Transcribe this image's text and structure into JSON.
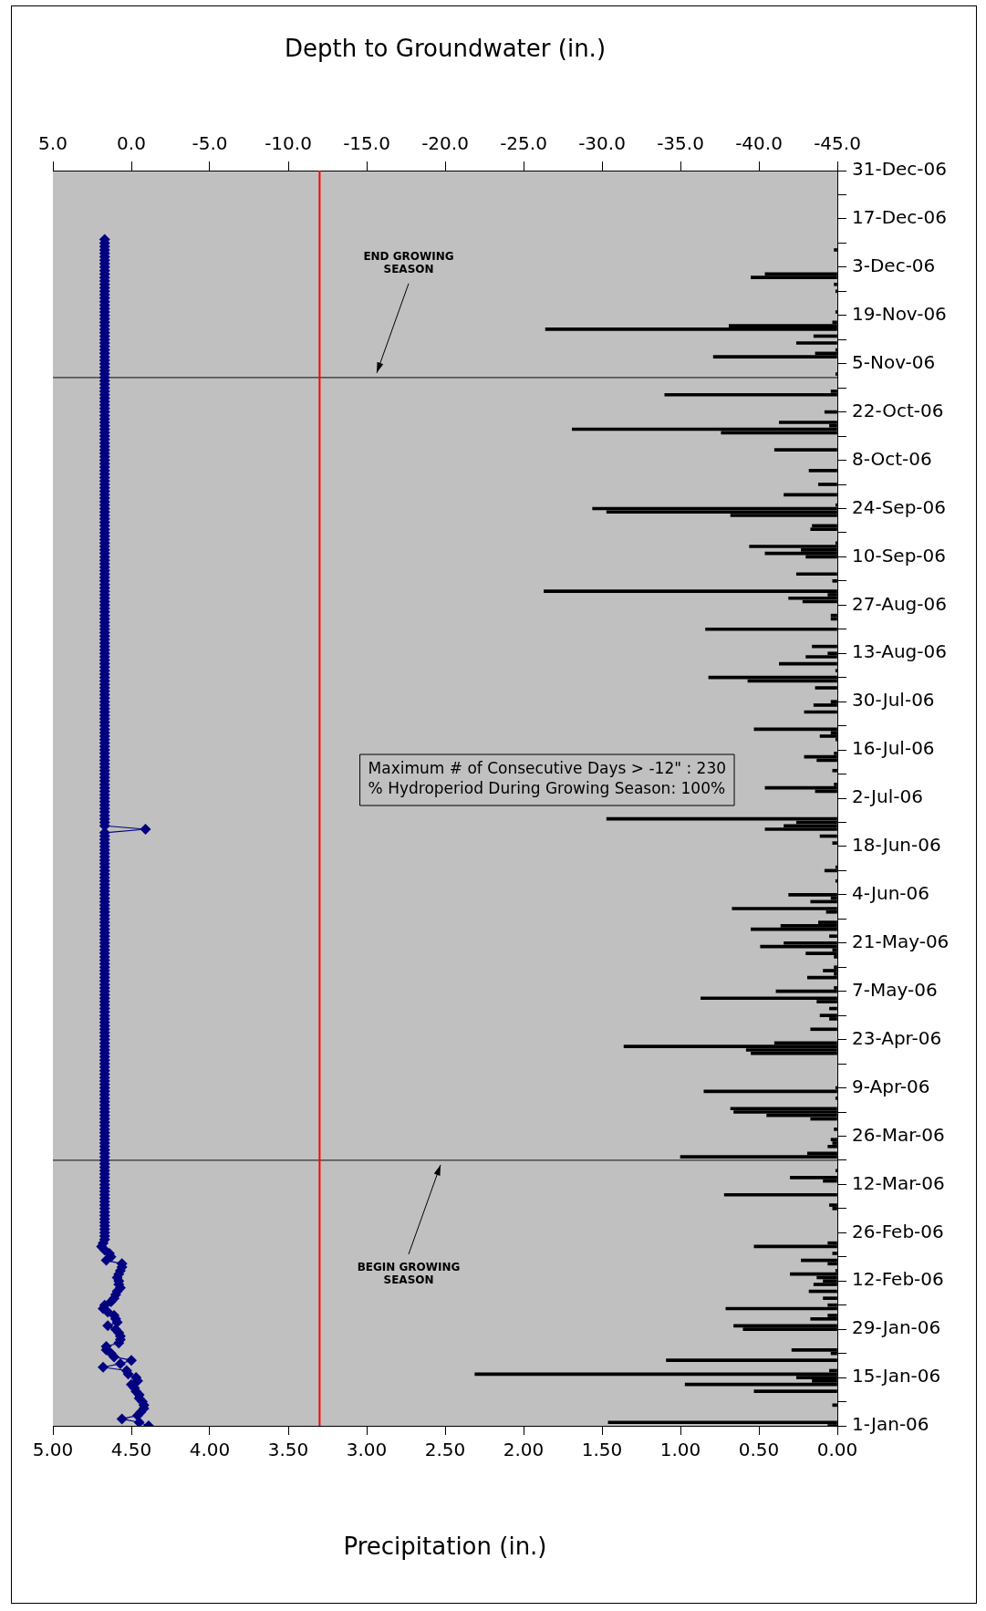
{
  "chart_data": {
    "type": "bar",
    "orientation": "horizontal",
    "xlabel": "Precipitation (in.)",
    "x2label": "Depth to Groundwater (in.)",
    "ylim": [
      "--01-01",
      "--12-31"
    ],
    "yticks": [
      {
        "value": "--01-01",
        "label": "1-Jan-06"
      },
      {
        "value": "--01-08",
        "label": null
      },
      {
        "value": "--01-15",
        "label": "15-Jan-06"
      },
      {
        "value": "--01-22",
        "label": null
      },
      {
        "value": "--01-29",
        "label": "29-Jan-06"
      },
      {
        "value": "--02-05",
        "label": null
      },
      {
        "value": "--02-12",
        "label": "12-Feb-06"
      },
      {
        "value": "--02-19",
        "label": null
      },
      {
        "value": "--02-26",
        "label": "26-Feb-06"
      },
      {
        "value": "--03-05",
        "label": null
      },
      {
        "value": "--03-12",
        "label": "12-Mar-06"
      },
      {
        "value": "--03-19",
        "label": null
      },
      {
        "value": "--03-26",
        "label": "26-Mar-06"
      },
      {
        "value": "--04-02",
        "label": null
      },
      {
        "value": "--04-09",
        "label": "9-Apr-06"
      },
      {
        "value": "--04-16",
        "label": null
      },
      {
        "value": "--04-23",
        "label": "23-Apr-06"
      },
      {
        "value": "--04-30",
        "label": null
      },
      {
        "value": "--05-07",
        "label": "7-May-06"
      },
      {
        "value": "--05-14",
        "label": null
      },
      {
        "value": "--05-21",
        "label": "21-May-06"
      },
      {
        "value": "--05-28",
        "label": null
      },
      {
        "value": "--06-04",
        "label": "4-Jun-06"
      },
      {
        "value": "--06-11",
        "label": null
      },
      {
        "value": "--06-18",
        "label": "18-Jun-06"
      },
      {
        "value": "--06-25",
        "label": null
      },
      {
        "value": "--07-02",
        "label": "2-Jul-06"
      },
      {
        "value": "--07-09",
        "label": null
      },
      {
        "value": "--07-16",
        "label": "16-Jul-06"
      },
      {
        "value": "--07-23",
        "label": null
      },
      {
        "value": "--07-30",
        "label": "30-Jul-06"
      },
      {
        "value": "--08-06",
        "label": null
      },
      {
        "value": "--08-13",
        "label": "13-Aug-06"
      },
      {
        "value": "--08-20",
        "label": null
      },
      {
        "value": "--08-27",
        "label": "27-Aug-06"
      },
      {
        "value": "--09-03",
        "label": null
      },
      {
        "value": "--09-10",
        "label": "10-Sep-06"
      },
      {
        "value": "--09-17",
        "label": null
      },
      {
        "value": "--09-24",
        "label": "24-Sep-06"
      },
      {
        "value": "--10-01",
        "label": null
      },
      {
        "value": "--10-08",
        "label": "8-Oct-06"
      },
      {
        "value": "--10-15",
        "label": null
      },
      {
        "value": "--10-22",
        "label": "22-Oct-06"
      },
      {
        "value": "--10-29",
        "label": null
      },
      {
        "value": "--11-05",
        "label": "5-Nov-06"
      },
      {
        "value": "--11-12",
        "label": null
      },
      {
        "value": "--11-19",
        "label": "19-Nov-06"
      },
      {
        "value": "--11-26",
        "label": null
      },
      {
        "value": "--12-03",
        "label": "3-Dec-06"
      },
      {
        "value": "--12-10",
        "label": null
      },
      {
        "value": "--12-17",
        "label": "17-Dec-06"
      },
      {
        "value": "--12-24",
        "label": null
      },
      {
        "value": "--12-31",
        "label": "31-Dec-06"
      }
    ],
    "xlim": [
      5,
      0
    ],
    "xticks": [
      {
        "value": 0,
        "label": "0.00"
      },
      {
        "value": 0.5,
        "label": "0.50"
      },
      {
        "value": 1,
        "label": "1.00"
      },
      {
        "value": 1.5,
        "label": "1.50"
      },
      {
        "value": 2,
        "label": "2.00"
      },
      {
        "value": 2.5,
        "label": "2.50"
      },
      {
        "value": 3,
        "label": "3.00"
      },
      {
        "value": 3.5,
        "label": "3.50"
      },
      {
        "value": 4,
        "label": "4.00"
      },
      {
        "value": 4.5,
        "label": "4.50"
      },
      {
        "value": 5,
        "label": "5.00"
      }
    ],
    "x2lim": [
      5,
      -45
    ],
    "x2ticks": [
      {
        "value": -45,
        "label": "-45.0"
      },
      {
        "value": -40,
        "label": "-40.0"
      },
      {
        "value": -35,
        "label": "-35.0"
      },
      {
        "value": -30,
        "label": "-30.0"
      },
      {
        "value": -25,
        "label": "-25.0"
      },
      {
        "value": -20,
        "label": "-20.0"
      },
      {
        "value": -15,
        "label": "-15.0"
      },
      {
        "value": -10,
        "label": "-10.0"
      },
      {
        "value": -5,
        "label": "-5.0"
      },
      {
        "value": 0,
        "label": "0.0"
      },
      {
        "value": 5,
        "label": "5.0"
      }
    ],
    "marker": "diamond",
    "ref_lines": [
      {
        "axis": "y",
        "value": "--03-19",
        "label": "BEGIN GROWING SEASON",
        "color": "#303030"
      },
      {
        "axis": "y",
        "value": "--11-01",
        "label": "END GROWING SEASON",
        "color": "#303030"
      },
      {
        "axis": "x2",
        "value": -12,
        "color": "#ff0000"
      }
    ],
    "annotations": [
      "Maximum # of Consecutive Days > -12\" : 230",
      "% Hydroperiod During Growing Season: 100%"
    ],
    "series": [
      {
        "color": "#000000",
        "x": [
          "--01-01",
          "--01-02",
          "--01-07",
          "--01-11",
          "--01-13",
          "--01-14",
          "--01-15",
          "--01-16",
          "--01-17",
          "--01-20",
          "--01-22",
          "--01-23",
          "--01-29",
          "--01-30",
          "--02-01",
          "--02-02",
          "--02-04",
          "--02-05",
          "--02-07",
          "--02-09",
          "--02-11",
          "--02-12",
          "--02-13",
          "--02-14",
          "--02-15",
          "--02-17",
          "--02-18",
          "--02-20",
          "--02-22",
          "--02-23",
          "--03-05",
          "--03-06",
          "--03-09",
          "--03-13",
          "--03-14",
          "--03-16",
          "--03-20",
          "--03-21",
          "--03-23",
          "--03-24",
          "--03-25",
          "--03-28",
          "--03-31",
          "--04-01",
          "--04-02",
          "--04-03",
          "--04-06",
          "--04-08",
          "--04-09",
          "--04-19",
          "--04-20",
          "--04-21",
          "--04-22",
          "--04-26",
          "--04-29",
          "--04-30",
          "--05-02",
          "--05-04",
          "--05-05",
          "--05-07",
          "--05-08",
          "--05-11",
          "--05-12",
          "--05-13",
          "--05-14",
          "--05-17",
          "--05-18",
          "--05-19",
          "--05-20",
          "--05-21",
          "--05-23",
          "--05-25",
          "--05-26",
          "--05-27",
          "--05-30",
          "--05-31",
          "--06-02",
          "--06-03",
          "--06-04",
          "--06-08",
          "--06-11",
          "--06-12",
          "--06-19",
          "--06-21",
          "--06-23",
          "--06-24",
          "--06-25",
          "--06-26",
          "--07-04",
          "--07-05",
          "--07-06",
          "--07-10",
          "--07-13",
          "--07-14",
          "--07-15",
          "--07-19",
          "--07-20",
          "--07-21",
          "--07-22",
          "--07-27",
          "--07-29",
          "--07-30",
          "--08-03",
          "--08-05",
          "--08-06",
          "--08-08",
          "--08-10",
          "--08-12",
          "--08-13",
          "--08-15",
          "--08-20",
          "--08-23",
          "--08-24",
          "--08-28",
          "--08-29",
          "--08-30",
          "--08-31",
          "--09-03",
          "--09-05",
          "--09-10",
          "--09-11",
          "--09-12",
          "--09-13",
          "--09-14",
          "--09-18",
          "--09-19",
          "--09-22",
          "--09-23",
          "--09-24",
          "--09-25",
          "--09-28",
          "--10-01",
          "--10-05",
          "--10-11",
          "--10-16",
          "--10-17",
          "--10-18",
          "--10-19",
          "--10-22",
          "--10-27",
          "--10-28",
          "--11-02",
          "--11-07",
          "--11-08",
          "--11-09",
          "--11-11",
          "--11-13",
          "--11-15",
          "--11-16",
          "--11-17",
          "--11-20",
          "--11-26",
          "--11-28",
          "--11-30",
          "--12-01",
          "--12-08"
        ],
        "values": [
          0.06,
          1.46,
          0.03,
          0.53,
          0.97,
          0.16,
          0.26,
          2.31,
          0.05,
          1.09,
          0.04,
          0.29,
          0.6,
          0.66,
          0.17,
          0.06,
          0.71,
          0.06,
          0.09,
          0.18,
          0.15,
          0.09,
          0.13,
          0.3,
          0.01,
          0.06,
          0.23,
          0.03,
          0.53,
          0.06,
          0.03,
          0.05,
          0.72,
          0.09,
          0.3,
          0.01,
          1.0,
          0.19,
          0.06,
          0.03,
          0.04,
          0.02,
          0.17,
          0.45,
          0.66,
          0.68,
          0.01,
          0.85,
          0.01,
          0.55,
          0.58,
          1.36,
          0.4,
          0.17,
          0.05,
          0.11,
          0.05,
          0.13,
          0.87,
          0.39,
          0.02,
          0.19,
          0.02,
          0.09,
          0.02,
          0.02,
          0.2,
          0.03,
          0.49,
          0.34,
          0.05,
          0.55,
          0.36,
          0.12,
          0.07,
          0.67,
          0.17,
          0.04,
          0.31,
          0.01,
          0.08,
          0.01,
          0.03,
          0.11,
          0.46,
          0.34,
          0.26,
          1.47,
          0.14,
          0.46,
          0.02,
          0.03,
          0.13,
          0.21,
          0.02,
          0.01,
          0.11,
          0.04,
          0.53,
          0.21,
          0.15,
          0.04,
          0.14,
          0.57,
          0.82,
          0.01,
          0.37,
          0.2,
          0.06,
          0.16,
          0.84,
          0.04,
          0.04,
          0.22,
          0.31,
          0.06,
          1.87,
          0.03,
          0.26,
          0.2,
          0.46,
          0.23,
          0.56,
          0.01,
          0.17,
          0.16,
          0.68,
          1.47,
          1.56,
          0.01,
          0.34,
          0.12,
          0.18,
          0.4,
          0.74,
          1.69,
          0.05,
          0.37,
          0.08,
          1.1,
          0.04,
          0.01,
          0.79,
          0.14,
          0.01,
          0.26,
          0.15,
          1.86,
          0.69,
          0.03,
          0.01,
          0.01,
          0.02,
          0.55,
          0.46,
          0.02
        ]
      },
      {
        "type": "line",
        "axis": "x2",
        "color": "#000080",
        "x": [
          "--01-01",
          "--01-02",
          "--01-03",
          "--01-04",
          "--01-05",
          "--01-06",
          "--01-07",
          "--01-08",
          "--01-09",
          "--01-10",
          "--01-11",
          "--01-12",
          "--01-13",
          "--01-14",
          "--01-15",
          "--01-16",
          "--01-17",
          "--01-18",
          "--01-19",
          "--01-20",
          "--01-21",
          "--01-22",
          "--01-23",
          "--01-24",
          "--01-25",
          "--01-26",
          "--01-27",
          "--01-28",
          "--01-29",
          "--01-30",
          "--01-31",
          "--02-01",
          "--02-02",
          "--02-03",
          "--02-04",
          "--02-05",
          "--02-06",
          "--02-07",
          "--02-08",
          "--02-09",
          "--02-10",
          "--02-11",
          "--02-12",
          "--02-13",
          "--02-14",
          "--02-15",
          "--02-16",
          "--02-17",
          "--02-18",
          "--02-19",
          "--02-20",
          "--02-21",
          "--02-22",
          "--02-23",
          "--02-24",
          "--02-25",
          "--02-26",
          "--02-27",
          "--02-28",
          "--03-01",
          "--03-02",
          "--03-03",
          "--03-04",
          "--03-05",
          "--03-06",
          "--03-07",
          "--03-08",
          "--03-09",
          "--03-10",
          "--03-11",
          "--03-12",
          "--03-13",
          "--03-14",
          "--03-15",
          "--03-16",
          "--03-17",
          "--03-18",
          "--03-19",
          "--03-20",
          "--03-21",
          "--03-22",
          "--03-23",
          "--03-24",
          "--03-25",
          "--03-26",
          "--03-27",
          "--03-28",
          "--03-29",
          "--03-30",
          "--03-31",
          "--04-01",
          "--04-02",
          "--04-03",
          "--04-04",
          "--04-05",
          "--04-06",
          "--04-07",
          "--04-08",
          "--04-09",
          "--04-10",
          "--04-11",
          "--04-12",
          "--04-13",
          "--04-14",
          "--04-15",
          "--04-16",
          "--04-17",
          "--04-18",
          "--04-19",
          "--04-20",
          "--04-21",
          "--04-22",
          "--04-23",
          "--04-24",
          "--04-25",
          "--04-26",
          "--04-27",
          "--04-28",
          "--04-29",
          "--04-30",
          "--05-01",
          "--05-02",
          "--05-03",
          "--05-04",
          "--05-05",
          "--05-06",
          "--05-07",
          "--05-08",
          "--05-09",
          "--05-10",
          "--05-11",
          "--05-12",
          "--05-13",
          "--05-14",
          "--05-15",
          "--05-16",
          "--05-17",
          "--05-18",
          "--05-19",
          "--05-20",
          "--05-21",
          "--05-22",
          "--05-23",
          "--05-24",
          "--05-25",
          "--05-26",
          "--05-27",
          "--05-28",
          "--05-29",
          "--05-30",
          "--05-31",
          "--06-01",
          "--06-02",
          "--06-03",
          "--06-04",
          "--06-05",
          "--06-06",
          "--06-07",
          "--06-08",
          "--06-09",
          "--06-10",
          "--06-11",
          "--06-12",
          "--06-13",
          "--06-14",
          "--06-15",
          "--06-16",
          "--06-17",
          "--06-18",
          "--06-19",
          "--06-20",
          "--06-21",
          "--06-22",
          "--06-23",
          "--06-24",
          "--06-25",
          "--06-26",
          "--06-27",
          "--06-28",
          "--06-29",
          "--06-30",
          "--07-01",
          "--07-02",
          "--07-03",
          "--07-04",
          "--07-05",
          "--07-06",
          "--07-07",
          "--07-08",
          "--07-09",
          "--07-10",
          "--07-11",
          "--07-12",
          "--07-13",
          "--07-14",
          "--07-15",
          "--07-16",
          "--07-17",
          "--07-18",
          "--07-19",
          "--07-20",
          "--07-21",
          "--07-22",
          "--07-23",
          "--07-24",
          "--07-25",
          "--07-26",
          "--07-27",
          "--07-28",
          "--07-29",
          "--07-30",
          "--07-31",
          "--08-01",
          "--08-02",
          "--08-03",
          "--08-04",
          "--08-05",
          "--08-06",
          "--08-07",
          "--08-08",
          "--08-09",
          "--08-10",
          "--08-11",
          "--08-12",
          "--08-13",
          "--08-14",
          "--08-15",
          "--08-16",
          "--08-17",
          "--08-18",
          "--08-19",
          "--08-20",
          "--08-21",
          "--08-22",
          "--08-23",
          "--08-24",
          "--08-25",
          "--08-26",
          "--08-27",
          "--08-28",
          "--08-29",
          "--08-30",
          "--08-31",
          "--09-01",
          "--09-02",
          "--09-03",
          "--09-04",
          "--09-05",
          "--09-06",
          "--09-07",
          "--09-08",
          "--09-09",
          "--09-10",
          "--09-11",
          "--09-12",
          "--09-13",
          "--09-14",
          "--09-15",
          "--09-16",
          "--09-17",
          "--09-18",
          "--09-19",
          "--09-20",
          "--09-21",
          "--09-22",
          "--09-23",
          "--09-24",
          "--09-25",
          "--09-26",
          "--09-27",
          "--09-28",
          "--09-29",
          "--09-30",
          "--10-01",
          "--10-02",
          "--10-03",
          "--10-04",
          "--10-05",
          "--10-06",
          "--10-07",
          "--10-08",
          "--10-09",
          "--10-10",
          "--10-11",
          "--10-12",
          "--10-13",
          "--10-14",
          "--10-15",
          "--10-16",
          "--10-17",
          "--10-18",
          "--10-19",
          "--10-20",
          "--10-21",
          "--10-22",
          "--10-23",
          "--10-24",
          "--10-25",
          "--10-26",
          "--10-27",
          "--10-28",
          "--10-29",
          "--10-30",
          "--10-31",
          "--11-01",
          "--11-02",
          "--11-03",
          "--11-04",
          "--11-05",
          "--11-06",
          "--11-07",
          "--11-08",
          "--11-09",
          "--11-10",
          "--11-11",
          "--11-12",
          "--11-13",
          "--11-14",
          "--11-15",
          "--11-16",
          "--11-17",
          "--11-18",
          "--11-19",
          "--11-20",
          "--11-21",
          "--11-22",
          "--11-23",
          "--11-24",
          "--11-25",
          "--11-26",
          "--11-27",
          "--11-28",
          "--11-29",
          "--11-30",
          "--12-01",
          "--12-02",
          "--12-03",
          "--12-04",
          "--12-05",
          "--12-06",
          "--12-07",
          "--12-08",
          "--12-09",
          "--12-10",
          "--12-11"
        ],
        "values": [
          -1.1,
          -0.5,
          0.6,
          -0.4,
          -0.6,
          -0.8,
          -0.8,
          -0.7,
          -0.5,
          -0.5,
          -0.3,
          -0.2,
          0.0,
          -0.4,
          -0.3,
          0.2,
          0.3,
          1.8,
          0.7,
          0.0,
          1.1,
          1.3,
          1.6,
          1.6,
          0.8,
          0.7,
          0.7,
          0.8,
          1.0,
          1.5,
          0.9,
          1.0,
          1.1,
          1.5,
          1.8,
          1.7,
          1.3,
          1.1,
          1.0,
          0.9,
          0.7,
          0.8,
          0.8,
          0.9,
          0.8,
          0.7,
          0.6,
          0.6,
          1.6,
          1.3,
          1.4,
          1.7,
          1.9,
          1.8,
          1.7,
          1.7,
          1.7,
          1.7,
          1.7,
          1.7,
          1.7,
          1.7,
          1.7,
          1.7,
          1.7,
          1.7,
          1.7,
          1.7,
          1.7,
          1.7,
          1.7,
          1.7,
          1.7,
          1.7,
          1.7,
          1.7,
          1.7,
          1.7,
          1.7,
          1.7,
          1.7,
          1.7,
          1.7,
          1.7,
          1.7,
          1.7,
          1.7,
          1.7,
          1.7,
          1.7,
          1.7,
          1.7,
          1.7,
          1.7,
          1.7,
          1.7,
          1.7,
          1.7,
          1.7,
          1.7,
          1.7,
          1.7,
          1.7,
          1.7,
          1.7,
          1.7,
          1.7,
          1.7,
          1.7,
          1.7,
          1.7,
          1.7,
          1.7,
          1.7,
          1.7,
          1.7,
          1.7,
          1.7,
          1.7,
          1.7,
          1.7,
          1.7,
          1.7,
          1.7,
          1.7,
          1.7,
          1.7,
          1.7,
          1.7,
          1.7,
          1.7,
          1.7,
          1.7,
          1.7,
          1.7,
          1.7,
          1.7,
          1.7,
          1.7,
          1.7,
          1.7,
          1.7,
          1.7,
          1.7,
          1.7,
          1.7,
          1.7,
          1.7,
          1.7,
          1.7,
          1.7,
          1.7,
          1.7,
          1.7,
          1.7,
          1.7,
          1.7,
          1.7,
          1.7,
          1.7,
          1.7,
          1.7,
          1.7,
          1.7,
          1.7,
          1.7,
          1.7,
          1.7,
          1.7,
          1.7,
          1.7,
          1.7,
          1.7,
          -0.9,
          1.7,
          1.7,
          1.7,
          1.7,
          1.7,
          1.7,
          1.7,
          1.7,
          1.7,
          1.7,
          1.7,
          1.7,
          1.7,
          1.7,
          1.7,
          1.7,
          1.7,
          1.7,
          1.7,
          1.7,
          1.7,
          1.7,
          1.7,
          1.7,
          1.7,
          1.7,
          1.7,
          1.7,
          1.7,
          1.7,
          1.7,
          1.7,
          1.7,
          1.7,
          1.7,
          1.7,
          1.7,
          1.7,
          1.7,
          1.7,
          1.7,
          1.7,
          1.7,
          1.7,
          1.7,
          1.7,
          1.7,
          1.7,
          1.7,
          1.7,
          1.7,
          1.7,
          1.7,
          1.7,
          1.7,
          1.7,
          1.7,
          1.7,
          1.7,
          1.7,
          1.7,
          1.7,
          1.7,
          1.7,
          1.7,
          1.7,
          1.7,
          1.7,
          1.7,
          1.7,
          1.7,
          1.7,
          1.7,
          1.7,
          1.7,
          1.7,
          1.7,
          1.7,
          1.7,
          1.7,
          1.7,
          1.7,
          1.7,
          1.7,
          1.7,
          1.7,
          1.7,
          1.7,
          1.7,
          1.7,
          1.7,
          1.7,
          1.7,
          1.7,
          1.7,
          1.7,
          1.7,
          1.7,
          1.7,
          1.7,
          1.7,
          1.7,
          1.7,
          1.7,
          1.7,
          1.7,
          1.7,
          1.7,
          1.7,
          1.7,
          1.7,
          1.7,
          1.7,
          1.7,
          1.7,
          1.7,
          1.7,
          1.7,
          1.7,
          1.7,
          1.7,
          1.7,
          1.7,
          1.7,
          1.7,
          1.7,
          1.7,
          1.7,
          1.7,
          1.7,
          1.7,
          1.7,
          1.7,
          1.7,
          1.7,
          1.7,
          1.7,
          1.7,
          1.7,
          1.7,
          1.7,
          1.7,
          1.7,
          1.7,
          1.7,
          1.7,
          1.7,
          1.7,
          1.7,
          1.7,
          1.7,
          1.7,
          1.7,
          1.7,
          1.7,
          1.7,
          1.7,
          1.7,
          1.7,
          1.7,
          1.7,
          1.7,
          1.7,
          1.7,
          1.7,
          1.7,
          1.7,
          1.7,
          1.7,
          1.7,
          1.7
        ]
      }
    ]
  }
}
